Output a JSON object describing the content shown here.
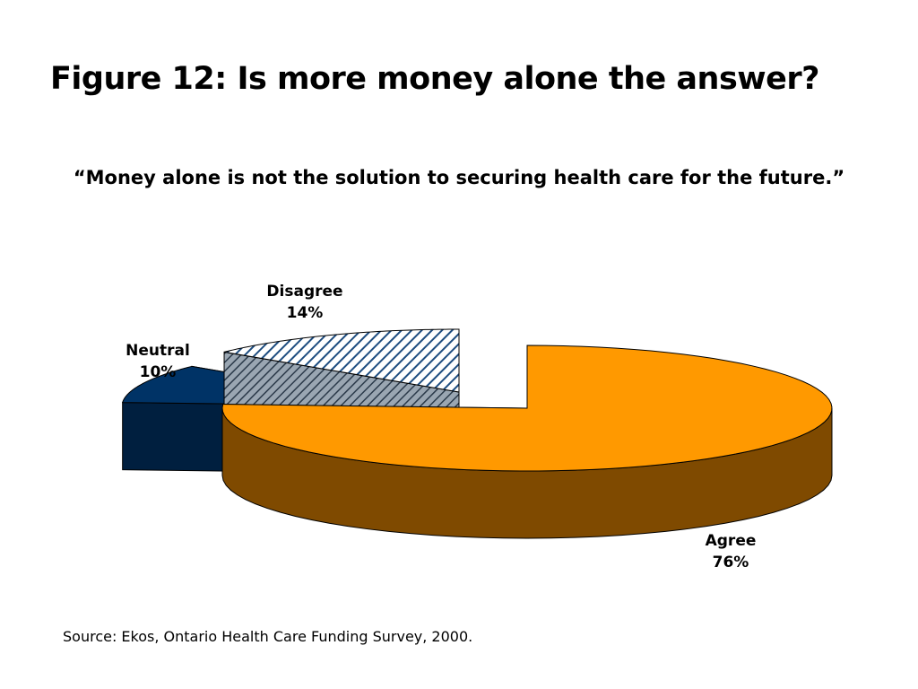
{
  "slide": {
    "title": "Figure 12: Is more money alone the answer?",
    "subtitle": "“Money alone is not the solution to securing health care for the future.”",
    "source": "Source: Ekos, Ontario Health Care Funding Survey, 2000."
  },
  "chart_data": {
    "type": "pie",
    "title": "",
    "categories": [
      "Agree",
      "Disagree",
      "Neutral"
    ],
    "values": [
      76,
      14,
      10
    ],
    "value_labels": [
      "76%",
      "14%",
      "10%"
    ],
    "style": "3d-exploded",
    "colors": {
      "Agree": {
        "top": "#ff9900",
        "side": "#7f4a00"
      },
      "Disagree": {
        "top": "#ffffff",
        "hatch": "#1e4d80",
        "side": "#6f7f90"
      },
      "Neutral": {
        "top": "#003366",
        "side": "#001f3f"
      }
    },
    "legend": "none (labels on slices)"
  }
}
